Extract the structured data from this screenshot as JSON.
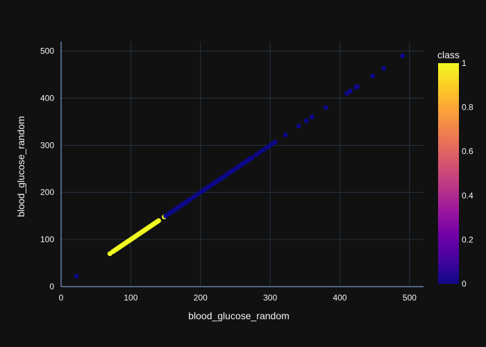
{
  "chart_data": {
    "type": "scatter",
    "xlabel": "blood_glucose_random",
    "ylabel": "blood_glucose_random",
    "xlim": [
      0,
      520
    ],
    "ylim": [
      0,
      520
    ],
    "xticks": [
      0,
      100,
      200,
      300,
      400,
      500
    ],
    "yticks": [
      0,
      100,
      200,
      300,
      400,
      500
    ],
    "grid": true,
    "colorbar": {
      "title": "class",
      "range": [
        0,
        1
      ],
      "ticks": [
        "0",
        "0.2",
        "0.4",
        "0.6",
        "0.8",
        "1"
      ],
      "colors": [
        "#0d0887",
        "#46039f",
        "#7201a8",
        "#9c179e",
        "#bd3786",
        "#d8576b",
        "#ed7953",
        "#fb9f3a",
        "#fdca26",
        "#f0f921"
      ]
    },
    "series": [
      {
        "class": 1,
        "color": "#f0f921",
        "x": [
          70,
          74,
          76,
          78,
          79,
          80,
          81,
          82,
          83,
          84,
          85,
          86,
          87,
          88,
          89,
          90,
          91,
          92,
          93,
          94,
          95,
          96,
          97,
          98,
          99,
          100,
          101,
          102,
          103,
          104,
          105,
          106,
          107,
          108,
          109,
          110,
          111,
          112,
          113,
          114,
          115,
          116,
          117,
          118,
          119,
          120,
          121,
          122,
          123,
          124,
          125,
          126,
          127,
          128,
          129,
          130,
          131,
          132,
          133,
          134,
          135,
          136,
          137,
          138,
          139,
          140,
          148
        ],
        "y": [
          70,
          74,
          76,
          78,
          79,
          80,
          81,
          82,
          83,
          84,
          85,
          86,
          87,
          88,
          89,
          90,
          91,
          92,
          93,
          94,
          95,
          96,
          97,
          98,
          99,
          100,
          101,
          102,
          103,
          104,
          105,
          106,
          107,
          108,
          109,
          110,
          111,
          112,
          113,
          114,
          115,
          116,
          117,
          118,
          119,
          120,
          121,
          122,
          123,
          124,
          125,
          126,
          127,
          128,
          129,
          130,
          131,
          132,
          133,
          134,
          135,
          136,
          137,
          138,
          139,
          140,
          148
        ]
      },
      {
        "class": 0,
        "color": "#0d0887",
        "x": [
          22,
          150,
          155,
          158,
          160,
          163,
          165,
          168,
          170,
          173,
          176,
          179,
          182,
          185,
          190,
          195,
          200,
          203,
          206,
          209,
          212,
          215,
          218,
          220,
          223,
          226,
          229,
          232,
          235,
          238,
          241,
          244,
          247,
          250,
          253,
          256,
          259,
          262,
          265,
          268,
          271,
          274,
          280,
          285,
          290,
          295,
          299,
          303,
          307,
          322,
          341,
          352,
          360,
          380,
          410,
          415,
          423,
          425,
          447,
          463,
          490
        ],
        "y": [
          22,
          150,
          155,
          158,
          160,
          163,
          165,
          168,
          170,
          173,
          176,
          179,
          182,
          185,
          190,
          195,
          200,
          203,
          206,
          209,
          212,
          215,
          218,
          220,
          223,
          226,
          229,
          232,
          235,
          238,
          241,
          244,
          247,
          250,
          253,
          256,
          259,
          262,
          265,
          268,
          271,
          274,
          280,
          285,
          290,
          295,
          299,
          303,
          307,
          322,
          341,
          352,
          360,
          380,
          410,
          415,
          423,
          425,
          447,
          463,
          490
        ]
      }
    ]
  }
}
